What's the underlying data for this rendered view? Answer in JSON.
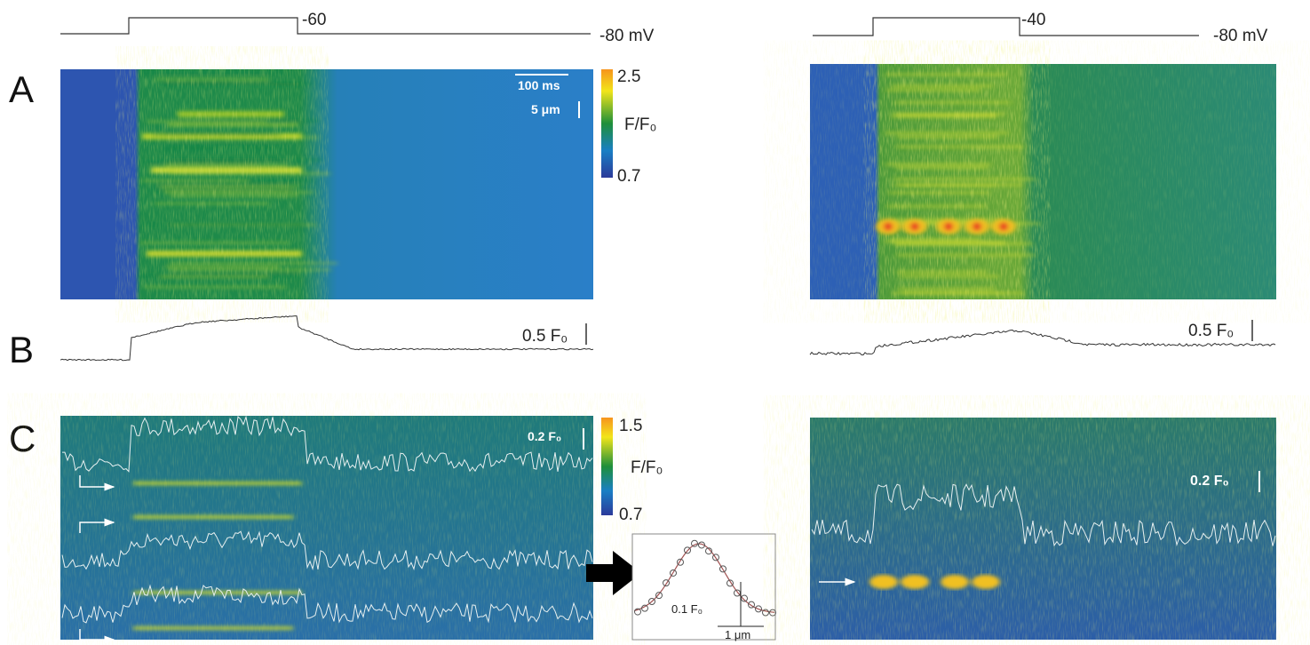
{
  "panel_labels": [
    "A",
    "B",
    "C"
  ],
  "left": {
    "voltage_step": "-60",
    "holding": "-80 mV",
    "scale_time": "100 ms",
    "scale_space": "5 μm",
    "colorbar_a": {
      "max": "2.5",
      "label": "F/F₀",
      "min": "0.7"
    },
    "scale_b": "0.5 F₀",
    "scale_c": "0.2 F₀",
    "colorbar_c": {
      "max": "1.5",
      "label": "F/F₀",
      "min": "0.7"
    }
  },
  "right": {
    "voltage_step": "-40",
    "holding": "-80 mV",
    "scale_b": "0.5 F₀",
    "scale_c": "0.2 F₀"
  },
  "inset": {
    "scale_y": "0.1 F₀",
    "scale_x": "1 μm"
  }
}
